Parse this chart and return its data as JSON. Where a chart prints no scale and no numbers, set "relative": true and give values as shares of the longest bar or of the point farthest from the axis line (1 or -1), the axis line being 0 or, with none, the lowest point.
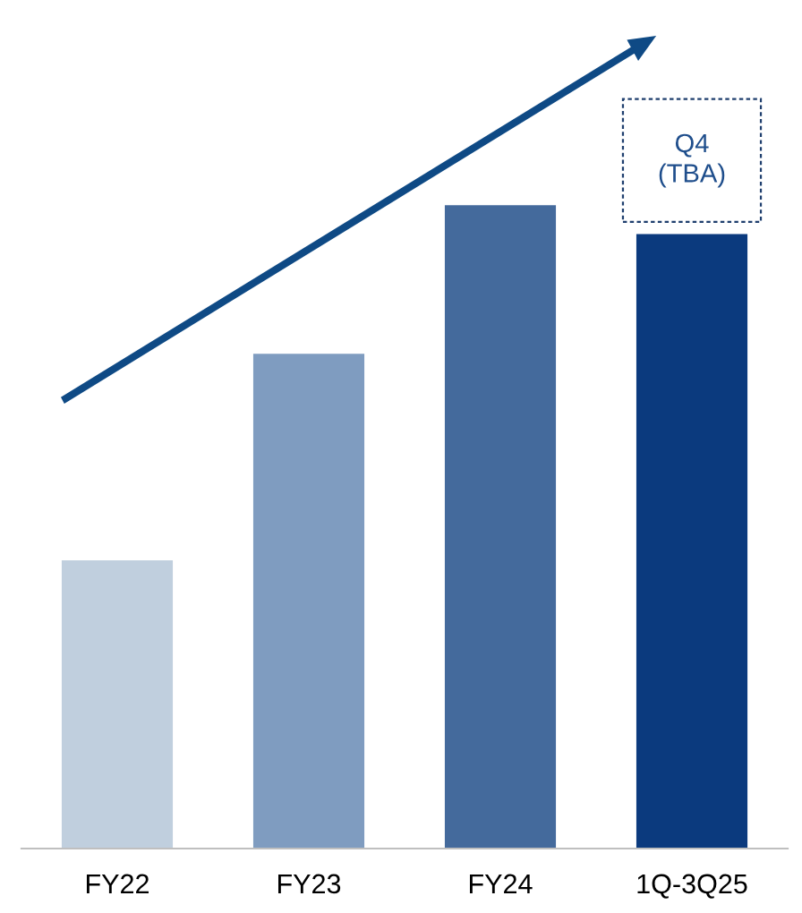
{
  "chart_data": {
    "type": "bar",
    "relative": true,
    "categories": [
      "FY22",
      "FY23",
      "FY24",
      "1Q-3Q25"
    ],
    "values": [
      0.448,
      0.769,
      1,
      0.955
    ],
    "colors": [
      "#c0cfde",
      "#7f9cc0",
      "#446a9c",
      "#0b3a7e"
    ],
    "annotations": [
      {
        "text": "Q4\n(TBA)",
        "x": "1Q-3Q25",
        "y": 0.955
      }
    ],
    "grid": false,
    "legend": false
  }
}
